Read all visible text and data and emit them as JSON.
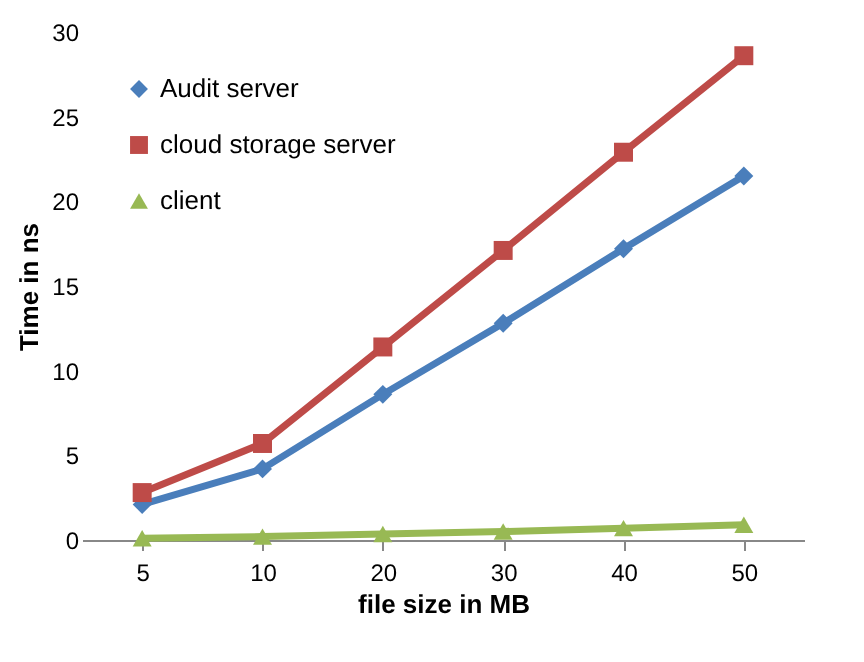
{
  "chart_data": {
    "type": "line",
    "xlabel": "file size in MB",
    "ylabel": "Time in ns",
    "categories": [
      "5",
      "10",
      "20",
      "30",
      "40",
      "50"
    ],
    "series": [
      {
        "name": "Audit server",
        "color": "#4a7ebb",
        "marker": "diamond",
        "values": [
          2.1,
          4.2,
          8.6,
          12.8,
          17.2,
          21.5
        ]
      },
      {
        "name": "cloud storage server",
        "color": "#be4b48",
        "marker": "square",
        "values": [
          2.8,
          5.7,
          11.4,
          17.1,
          22.9,
          28.6
        ]
      },
      {
        "name": "client",
        "color": "#98b954",
        "marker": "triangle",
        "values": [
          0.1,
          0.2,
          0.35,
          0.5,
          0.7,
          0.9
        ]
      }
    ],
    "ylim": [
      0,
      30
    ],
    "yticks": [
      0,
      5,
      10,
      15,
      20,
      25,
      30
    ],
    "grid": false,
    "legend": "top left"
  }
}
